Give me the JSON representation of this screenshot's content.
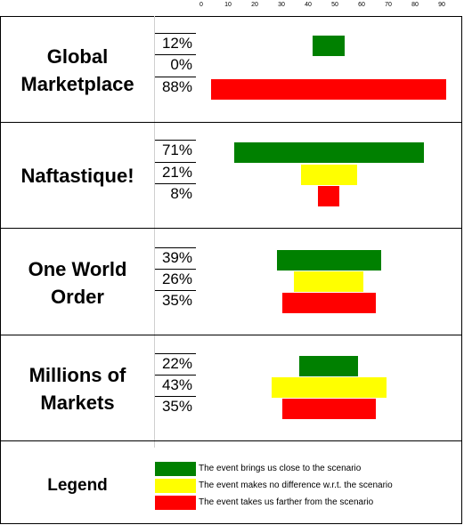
{
  "chart_data": {
    "type": "bar",
    "orientation": "horizontal",
    "bar_alignment": "centered",
    "xlim": [
      0,
      90
    ],
    "x_ticks": [
      "0",
      "10",
      "20",
      "30",
      "40",
      "50",
      "60",
      "70",
      "80",
      "90"
    ],
    "categories": [
      "The event brings us close to the scenario",
      "The event makes no difference w.r.t. the scenario",
      "The event takes us farther from the scenario"
    ],
    "colors": {
      "closer": "#008000",
      "no_difference": "#ffff00",
      "farther": "#ff0000"
    },
    "scenarios": [
      {
        "name": [
          "Global",
          "Marketplace"
        ],
        "labels": [
          "12%",
          "0%",
          "88%"
        ],
        "values": [
          12,
          0,
          88
        ]
      },
      {
        "name": [
          "Naftastique!"
        ],
        "labels": [
          "71%",
          "21%",
          "8%"
        ],
        "values": [
          71,
          21,
          8
        ]
      },
      {
        "name": [
          "One World",
          "Order"
        ],
        "labels": [
          "39%",
          "26%",
          "35%"
        ],
        "values": [
          39,
          26,
          35
        ]
      },
      {
        "name": [
          "Millions of",
          "Markets"
        ],
        "labels": [
          "22%",
          "43%",
          "35%"
        ],
        "values": [
          22,
          43,
          35
        ]
      }
    ]
  },
  "legend": {
    "title": "Legend",
    "items": [
      {
        "label": "The event brings us close to the scenario",
        "color": "#008000"
      },
      {
        "label": "The event makes no difference w.r.t. the scenario",
        "color": "#ffff00"
      },
      {
        "label": "The event takes us farther from the scenario",
        "color": "#ff0000"
      }
    ]
  }
}
